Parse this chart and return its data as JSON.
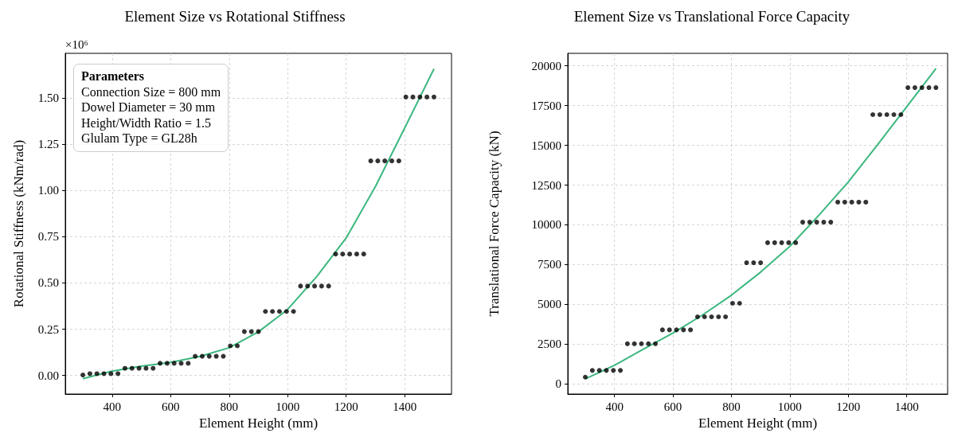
{
  "chart_data": [
    {
      "type": "scatter",
      "title": "Element Size vs Rotational Stiffness",
      "xlabel": "Element Height (mm)",
      "ylabel": "Rotational Stiffness (kNm/rad)",
      "annotations": [
        "×10⁶",
        "Parameters",
        "Connection Size = 800 mm",
        "Dowel Diameter = 30 mm",
        "Height/Width Ratio = 1.5",
        "Glulam Type = GL28h"
      ],
      "xlim": [
        240,
        1560
      ],
      "xticks": [
        400,
        600,
        800,
        1000,
        1200,
        1400
      ],
      "ylim": [
        -0.1,
        1.74
      ],
      "yticks": [
        {
          "value": 0,
          "label": "0.00"
        },
        0.25,
        {
          "value": 0.5,
          "label": "0.50"
        },
        {
          "value": 0.75,
          "label": "0.75"
        },
        {
          "value": 1,
          "label": "1.00"
        },
        1.25,
        {
          "value": 1.5,
          "label": "1.50"
        }
      ],
      "grid": true,
      "series": [
        {
          "marker": "circle",
          "color": "#000000",
          "x": [
            300,
            324,
            348,
            372,
            396,
            420,
            444,
            468,
            492,
            516,
            540,
            564,
            588,
            612,
            636,
            660,
            684,
            708,
            732,
            756,
            780,
            804,
            828,
            852,
            876,
            900,
            924,
            948,
            972,
            996,
            1020,
            1044,
            1068,
            1092,
            1116,
            1140,
            1164,
            1188,
            1212,
            1236,
            1260,
            1284,
            1308,
            1332,
            1356,
            1380,
            1404,
            1428,
            1452,
            1476,
            1500
          ],
          "values": [
            0.003,
            0.01,
            0.01,
            0.01,
            0.01,
            0.01,
            0.039,
            0.039,
            0.039,
            0.039,
            0.039,
            0.066,
            0.066,
            0.066,
            0.066,
            0.066,
            0.104,
            0.104,
            0.104,
            0.104,
            0.104,
            0.16,
            0.16,
            0.237,
            0.237,
            0.237,
            0.346,
            0.346,
            0.346,
            0.346,
            0.346,
            0.483,
            0.483,
            0.483,
            0.483,
            0.483,
            0.656,
            0.656,
            0.656,
            0.656,
            0.656,
            1.159,
            1.159,
            1.159,
            1.159,
            1.159,
            1.504,
            1.504,
            1.504,
            1.504,
            1.504
          ]
        },
        {
          "type": "line",
          "color": "#3cb77f",
          "x": [
            300,
            400,
            500,
            600,
            700,
            800,
            900,
            1000,
            1100,
            1200,
            1300,
            1400,
            1500
          ],
          "values": [
            -0.017,
            0.024,
            0.05,
            0.071,
            0.103,
            0.15,
            0.236,
            0.357,
            0.536,
            0.743,
            1.021,
            1.337,
            1.656
          ]
        }
      ]
    },
    {
      "type": "scatter",
      "title": "Element Size vs Translational Force Capacity",
      "xlabel": "Element Height (mm)",
      "ylabel": "Translational Force Capacity (kN)",
      "xlim": [
        240,
        1540
      ],
      "xticks": [
        400,
        600,
        800,
        1000,
        1200,
        1400
      ],
      "ylim": [
        -633,
        20783
      ],
      "yticks": [
        0,
        2500,
        5000,
        7500,
        10000,
        12500,
        15000,
        17500,
        20000
      ],
      "grid": true,
      "series": [
        {
          "marker": "circle",
          "color": "#000000",
          "x": [
            300,
            324,
            348,
            372,
            396,
            420,
            444,
            468,
            492,
            516,
            540,
            564,
            588,
            612,
            636,
            660,
            684,
            708,
            732,
            756,
            780,
            804,
            828,
            852,
            876,
            900,
            924,
            948,
            972,
            996,
            1020,
            1044,
            1068,
            1092,
            1116,
            1140,
            1164,
            1188,
            1212,
            1236,
            1260,
            1284,
            1308,
            1332,
            1356,
            1380,
            1404,
            1428,
            1452,
            1476,
            1500
          ],
          "values": [
            430,
            850,
            850,
            850,
            850,
            850,
            2530,
            2530,
            2530,
            2530,
            2530,
            3400,
            3400,
            3400,
            3400,
            3400,
            4220,
            4220,
            4220,
            4220,
            4220,
            5070,
            5070,
            7620,
            7620,
            7620,
            8880,
            8880,
            8880,
            8880,
            8880,
            10170,
            10170,
            10170,
            10170,
            10170,
            11430,
            11430,
            11430,
            11430,
            11430,
            16930,
            16930,
            16930,
            16930,
            16930,
            18630,
            18630,
            18630,
            18630,
            18630
          ]
        },
        {
          "type": "line",
          "color": "#3cb77f",
          "x": [
            300,
            400,
            500,
            600,
            700,
            800,
            900,
            1000,
            1100,
            1200,
            1300,
            1400,
            1500
          ],
          "values": [
            320,
            1170,
            2200,
            3200,
            4320,
            5580,
            7030,
            8650,
            10620,
            12700,
            15030,
            17420,
            19830
          ]
        }
      ]
    }
  ]
}
